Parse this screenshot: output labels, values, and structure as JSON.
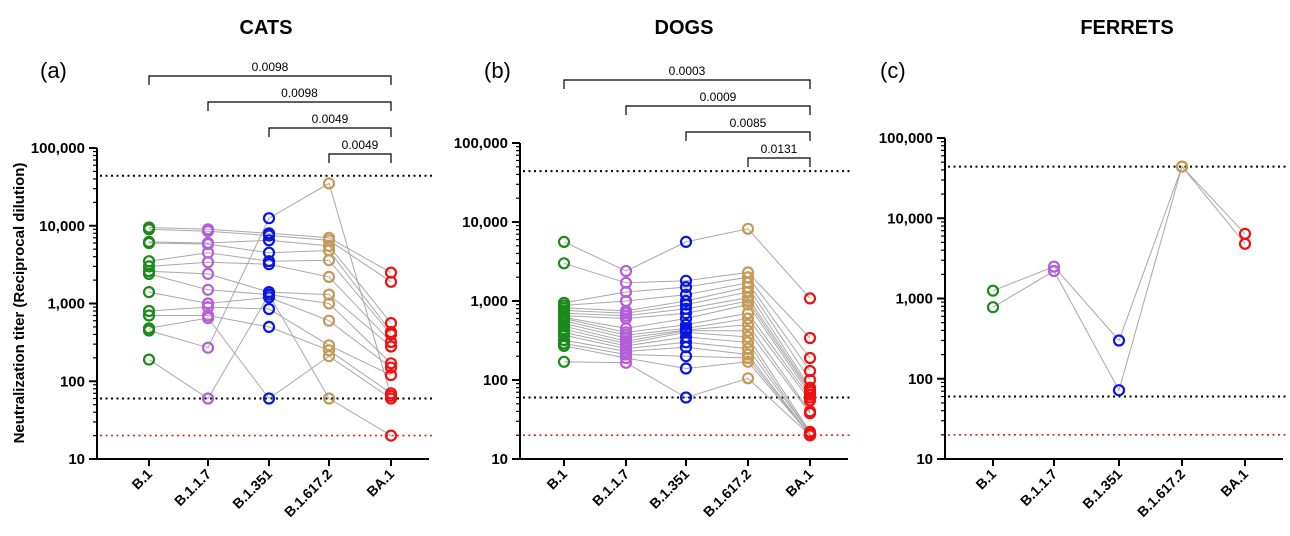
{
  "figure": {
    "ylabel": "Neutralization titer (Reciprocal dilution)"
  },
  "colors": {
    "B.1": "#1a8a1a",
    "B.1.1.7": "#b45fd9",
    "B.1.351": "#0a14e6",
    "B.1.617.2": "#c49a55",
    "BA.1": "#ee1111",
    "connector": "#a8a8a8",
    "black_threshold": "#000000",
    "red_threshold": "#e02020"
  },
  "chart_data": [
    {
      "type": "scatter",
      "title": "CATS",
      "panel_label": "(a)",
      "categories": [
        "B.1",
        "B.1.1.7",
        "B.1.351",
        "B.1.617.2",
        "BA.1"
      ],
      "yscale": "log",
      "ylim": [
        10,
        100000
      ],
      "yticks": [
        10,
        100,
        1000,
        10000,
        100000
      ],
      "ytick_labels": [
        "10",
        "100",
        "1,000",
        "10,000",
        "100,000"
      ],
      "thresholds": [
        {
          "value": 44000,
          "color": "black",
          "style": "dotted"
        },
        {
          "value": 60,
          "color": "black",
          "style": "dotted"
        },
        {
          "value": 20,
          "color": "red",
          "style": "dotted"
        }
      ],
      "subjects": [
        [
          9500,
          9000,
          8000,
          7000,
          2500
        ],
        [
          9000,
          8500,
          7500,
          6500,
          1900
        ],
        [
          6200,
          6000,
          6500,
          5500,
          560
        ],
        [
          6000,
          5800,
          4500,
          4800,
          430
        ],
        [
          3500,
          4500,
          3500,
          3600,
          400
        ],
        [
          3000,
          3400,
          3200,
          2200,
          320
        ],
        [
          2600,
          2400,
          1400,
          1300,
          280
        ],
        [
          2400,
          1500,
          1300,
          1000,
          170
        ],
        [
          1400,
          1000,
          1200,
          600,
          150
        ],
        [
          800,
          900,
          850,
          290,
          120
        ],
        [
          700,
          700,
          500,
          250,
          70
        ],
        [
          480,
          650,
          60,
          210,
          60
        ],
        [
          450,
          270,
          12500,
          35000,
          65
        ],
        [
          190,
          60,
          1300,
          60,
          20
        ]
      ],
      "comparisons": [
        {
          "from": "B.1",
          "to": "BA.1",
          "p": "0.0098"
        },
        {
          "from": "B.1.1.7",
          "to": "BA.1",
          "p": "0.0098"
        },
        {
          "from": "B.1.351",
          "to": "BA.1",
          "p": "0.0049"
        },
        {
          "from": "B.1.617.2",
          "to": "BA.1",
          "p": "0.0049"
        }
      ]
    },
    {
      "type": "scatter",
      "title": "DOGS",
      "panel_label": "(b)",
      "categories": [
        "B.1",
        "B.1.1.7",
        "B.1.351",
        "B.1.617.2",
        "BA.1"
      ],
      "yscale": "log",
      "ylim": [
        10,
        100000
      ],
      "yticks": [
        10,
        100,
        1000,
        10000,
        100000
      ],
      "ytick_labels": [
        "10",
        "100",
        "1,000",
        "10,000",
        "100,000"
      ],
      "thresholds": [
        {
          "value": 44000,
          "color": "black",
          "style": "dotted"
        },
        {
          "value": 60,
          "color": "black",
          "style": "dotted"
        },
        {
          "value": 20,
          "color": "red",
          "style": "dotted"
        }
      ],
      "subjects": [
        [
          5600,
          2400,
          5600,
          8200,
          1080
        ],
        [
          3000,
          1700,
          1800,
          2300,
          340
        ],
        [
          950,
          1300,
          1500,
          2000,
          190
        ],
        [
          880,
          1000,
          1200,
          1700,
          130
        ],
        [
          820,
          750,
          1000,
          1500,
          100
        ],
        [
          760,
          700,
          900,
          1300,
          80
        ],
        [
          700,
          650,
          800,
          1100,
          75
        ],
        [
          650,
          600,
          700,
          1000,
          70
        ],
        [
          620,
          450,
          600,
          900,
          65
        ],
        [
          600,
          400,
          500,
          700,
          60
        ],
        [
          560,
          370,
          450,
          600,
          55
        ],
        [
          520,
          340,
          430,
          500,
          40
        ],
        [
          480,
          310,
          420,
          420,
          38
        ],
        [
          440,
          290,
          400,
          350,
          22
        ],
        [
          400,
          270,
          350,
          300,
          21
        ],
        [
          370,
          250,
          300,
          250,
          21
        ],
        [
          320,
          230,
          260,
          210,
          20
        ],
        [
          290,
          210,
          200,
          190,
          20
        ],
        [
          270,
          190,
          140,
          170,
          20
        ],
        [
          170,
          165,
          60,
          105,
          20
        ]
      ],
      "comparisons": [
        {
          "from": "B.1",
          "to": "BA.1",
          "p": "0.0003"
        },
        {
          "from": "B.1.1.7",
          "to": "BA.1",
          "p": "0.0009"
        },
        {
          "from": "B.1.351",
          "to": "BA.1",
          "p": "0.0085"
        },
        {
          "from": "B.1.617.2",
          "to": "BA.1",
          "p": "0.0131"
        }
      ]
    },
    {
      "type": "scatter",
      "title": "FERRETS",
      "panel_label": "(c)",
      "categories": [
        "B.1",
        "B.1.1.7",
        "B.1.351",
        "B.1.617.2",
        "BA.1"
      ],
      "yscale": "log",
      "ylim": [
        10,
        100000
      ],
      "yticks": [
        10,
        100,
        1000,
        10000,
        100000
      ],
      "ytick_labels": [
        "10",
        "100",
        "1,000",
        "10,000",
        "100,000"
      ],
      "thresholds": [
        {
          "value": 44000,
          "color": "black",
          "style": "dotted"
        },
        {
          "value": 60,
          "color": "black",
          "style": "dotted"
        },
        {
          "value": 20,
          "color": "red",
          "style": "dotted"
        }
      ],
      "subjects": [
        [
          1250,
          2500,
          300,
          44000,
          6400
        ],
        [
          780,
          2200,
          72,
          44000,
          4800
        ]
      ],
      "comparisons": []
    }
  ]
}
